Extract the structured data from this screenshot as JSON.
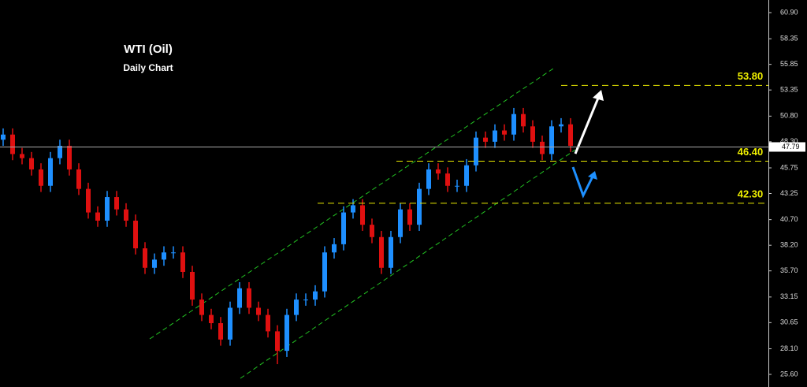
{
  "chart_data": {
    "type": "candlestick",
    "title": "WTI (Oil)",
    "subtitle": "Daily Chart",
    "open": [
      48.5,
      49.0,
      47.1,
      46.7,
      45.6,
      44.0,
      46.7,
      47.9,
      45.6,
      43.7,
      41.4,
      40.6,
      42.9,
      41.7,
      40.6,
      37.9,
      36.0,
      36.8,
      37.5,
      37.5,
      35.6,
      32.9,
      31.4,
      30.6,
      29.0,
      32.1,
      34.0,
      32.1,
      31.4,
      29.8,
      27.9,
      31.4,
      32.9,
      32.9,
      33.7,
      37.5,
      38.3,
      41.4,
      42.1,
      40.2,
      39.0,
      36.0,
      39.0,
      41.7,
      40.2,
      43.7,
      45.6,
      45.2,
      44.0,
      44.0,
      46.0,
      48.7,
      48.3,
      49.4,
      49.0,
      51.0,
      49.8,
      48.3,
      47.1,
      49.8,
      50.0
    ],
    "high": [
      49.6,
      49.6,
      47.7,
      47.3,
      46.2,
      47.3,
      48.5,
      48.5,
      46.2,
      44.3,
      42.0,
      43.5,
      43.5,
      42.3,
      41.2,
      38.5,
      37.4,
      38.1,
      38.1,
      38.1,
      36.2,
      33.5,
      32.0,
      31.2,
      32.7,
      34.6,
      34.6,
      32.7,
      32.0,
      30.4,
      32.0,
      33.5,
      33.5,
      34.3,
      38.1,
      38.9,
      42.0,
      42.7,
      42.7,
      40.8,
      39.6,
      39.6,
      42.3,
      42.3,
      44.3,
      46.2,
      46.2,
      45.8,
      44.6,
      46.6,
      49.3,
      49.3,
      50.0,
      50.0,
      51.6,
      51.6,
      50.4,
      48.9,
      50.4,
      50.6,
      50.6
    ],
    "low": [
      47.9,
      46.5,
      46.1,
      45.0,
      43.4,
      43.4,
      46.1,
      45.0,
      43.1,
      40.8,
      40.0,
      40.0,
      41.1,
      40.0,
      37.3,
      35.4,
      35.4,
      36.2,
      36.9,
      35.0,
      32.3,
      30.8,
      30.0,
      28.4,
      28.4,
      31.5,
      31.5,
      30.8,
      29.2,
      26.6,
      27.3,
      30.8,
      32.3,
      32.3,
      33.1,
      36.9,
      37.7,
      40.8,
      39.6,
      38.4,
      35.4,
      35.4,
      38.4,
      39.6,
      39.6,
      43.1,
      44.6,
      43.4,
      43.4,
      43.4,
      45.4,
      47.7,
      47.7,
      48.4,
      48.4,
      49.2,
      47.7,
      46.5,
      46.5,
      49.2,
      47.3
    ],
    "close": [
      49.0,
      47.1,
      46.7,
      45.6,
      44.0,
      46.7,
      47.9,
      45.6,
      43.7,
      41.4,
      40.6,
      42.9,
      41.7,
      40.6,
      37.9,
      36.0,
      36.8,
      37.5,
      37.5,
      35.6,
      32.9,
      31.4,
      30.6,
      29.0,
      32.1,
      34.0,
      32.1,
      31.4,
      29.8,
      27.9,
      31.4,
      32.9,
      32.9,
      33.7,
      37.5,
      38.3,
      41.4,
      42.1,
      40.2,
      39.0,
      36.0,
      39.0,
      41.7,
      40.2,
      43.7,
      45.6,
      45.2,
      44.0,
      44.0,
      46.0,
      48.7,
      48.3,
      49.4,
      49.0,
      51.0,
      49.8,
      48.3,
      47.1,
      49.8,
      50.0,
      47.9
    ],
    "up_color": "#1e8fff",
    "down_color": "#e01010",
    "current_price": 47.79,
    "levels": [
      {
        "value": 53.8,
        "label": "53.80"
      },
      {
        "value": 46.4,
        "label": "46.40"
      },
      {
        "value": 42.3,
        "label": "42.30"
      }
    ],
    "ylim": [
      24.37,
      62.13
    ],
    "yticks": [
      {
        "value": 60.9,
        "label": "60.90"
      },
      58.35,
      55.85,
      53.35,
      {
        "value": 50.8,
        "label": "50.80"
      },
      {
        "value": 48.3,
        "label": "48.30"
      },
      45.75,
      43.25,
      {
        "value": 40.7,
        "label": "40.70"
      },
      {
        "value": 38.2,
        "label": "38.20"
      },
      {
        "value": 35.7,
        "label": "35.70"
      },
      33.15,
      30.65,
      {
        "value": 28.1,
        "label": "28.10"
      },
      {
        "value": 25.6,
        "label": "25.60"
      }
    ]
  }
}
